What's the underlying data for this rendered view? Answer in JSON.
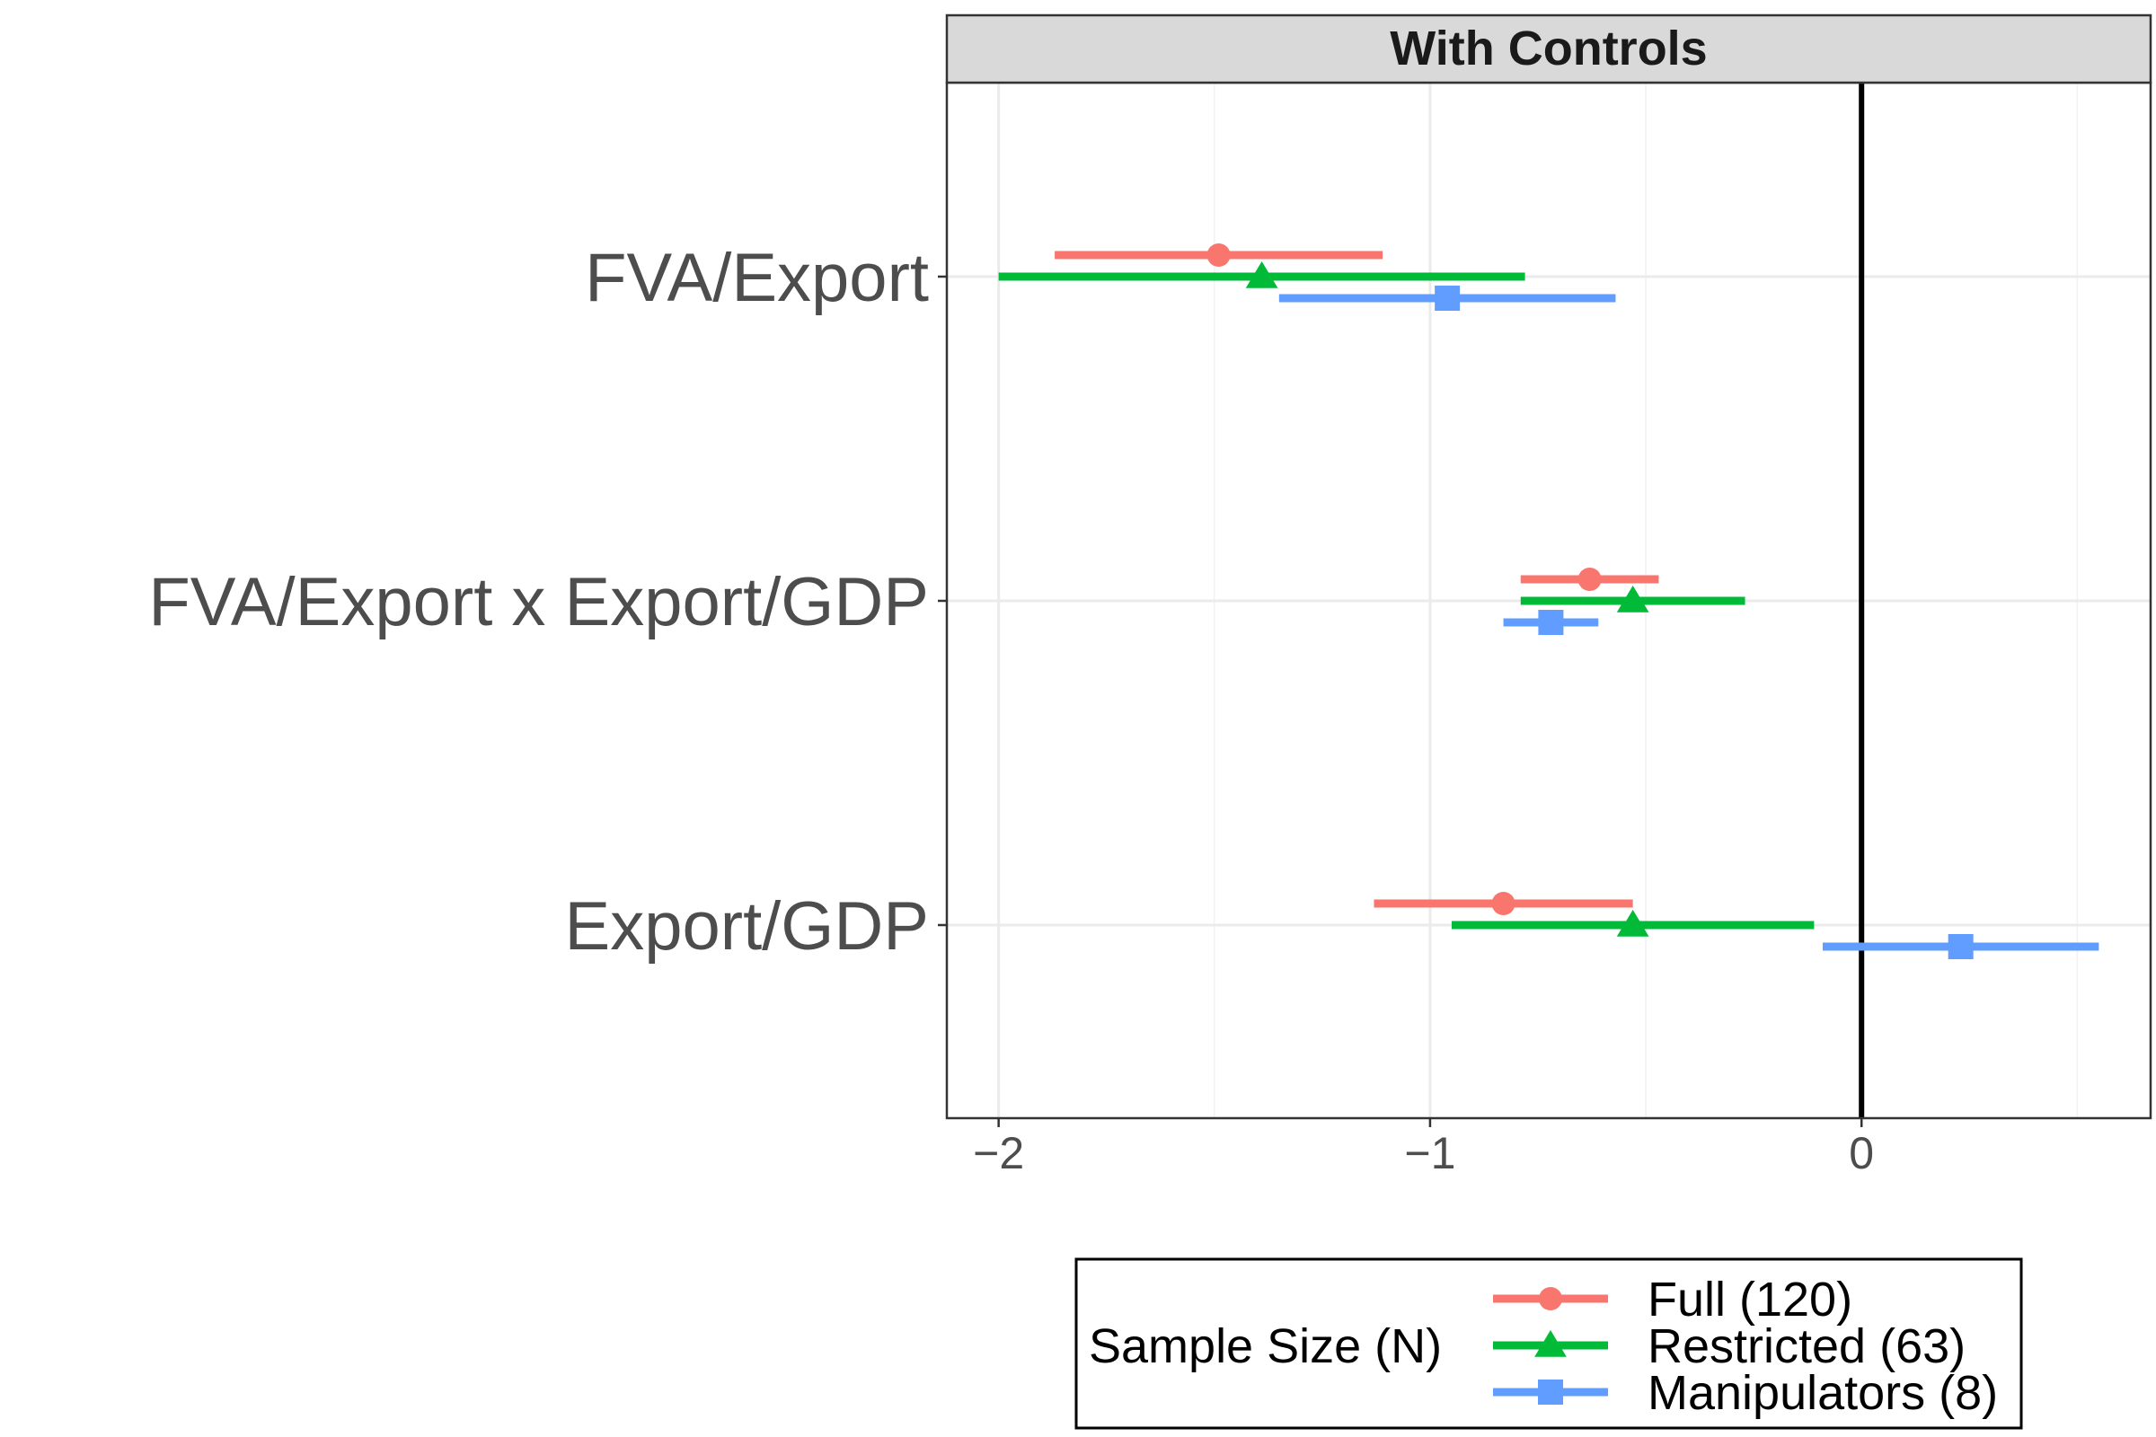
{
  "chart_data": {
    "type": "forest",
    "facet": "With Controls",
    "categories": [
      "FVA/Export",
      "FVA/Export x Export/GDP",
      "Export/GDP"
    ],
    "x_ticks": [
      -2,
      -1,
      0
    ],
    "x_tick_labels": [
      "−2",
      "−1",
      "0"
    ],
    "xlim": [
      -2.12,
      0.67
    ],
    "reference_line_x": 0,
    "grid": true,
    "legend": {
      "title": "Sample Size (N)",
      "position": "bottom"
    },
    "series": [
      {
        "name": "Full (120)",
        "color": "#F8766D",
        "marker": "circle",
        "estimates": [
          -1.49,
          -0.63,
          -0.83
        ],
        "lower": [
          -1.87,
          -0.79,
          -1.13
        ],
        "upper": [
          -1.11,
          -0.47,
          -0.53
        ]
      },
      {
        "name": "Restricted (63)",
        "color": "#00BA38",
        "marker": "triangle",
        "estimates": [
          -1.39,
          -0.53,
          -0.53
        ],
        "lower": [
          -2.0,
          -0.79,
          -0.95
        ],
        "upper": [
          -0.78,
          -0.27,
          -0.11
        ]
      },
      {
        "name": "Manipulators (8)",
        "color": "#619CFF",
        "marker": "square",
        "estimates": [
          -0.96,
          -0.72,
          0.23
        ],
        "lower": [
          -1.35,
          -0.83,
          -0.09
        ],
        "upper": [
          -0.57,
          -0.61,
          0.55
        ]
      }
    ]
  }
}
